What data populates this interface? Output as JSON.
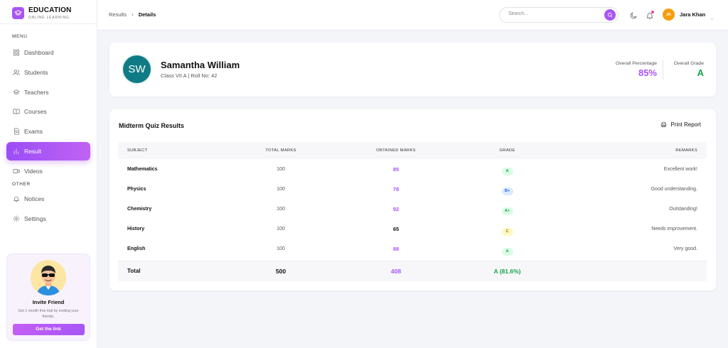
{
  "brand": {
    "title": "EDUCATION",
    "subtitle": "ONLINE LEARNING",
    "icon": "graduation-cap-icon",
    "color": "#a855f7"
  },
  "sidebar": {
    "menu_label": "MENU",
    "items": [
      {
        "label": "Dashboard",
        "icon": "dashboard-icon",
        "active": false
      },
      {
        "label": "Students",
        "icon": "users-icon",
        "active": false
      },
      {
        "label": "Teachers",
        "icon": "graduation-cap-icon",
        "active": false
      },
      {
        "label": "Courses",
        "icon": "book-icon",
        "active": false
      },
      {
        "label": "Exams",
        "icon": "document-icon",
        "active": false
      },
      {
        "label": "Result",
        "icon": "bar-chart-icon",
        "active": true
      },
      {
        "label": "Videos",
        "icon": "video-icon",
        "active": false
      }
    ],
    "other_label": "OTHER",
    "other_items": [
      {
        "label": "Notices",
        "icon": "bell-icon"
      },
      {
        "label": "Settings",
        "icon": "gear-icon"
      }
    ],
    "invite": {
      "title": "Invite Friend",
      "description": "Get 1 month free trial by inviting your friends.",
      "button": "Get the link"
    }
  },
  "header": {
    "breadcrumb": [
      "Results",
      "Details"
    ],
    "search": {
      "placeholder": "Search...",
      "value": ""
    },
    "user": {
      "initials": "JK",
      "name": "Jara Khan",
      "avatar_color": "#f59e0b"
    }
  },
  "student": {
    "initials": "SW",
    "name": "Samantha William",
    "meta": "Class VII A | Roll No: 42",
    "avatar_color": "#0f7b84",
    "overall_percentage_label": "Overall Percentage",
    "overall_percentage": "85%",
    "overall_grade_label": "Overall Grade",
    "overall_grade": "A"
  },
  "results": {
    "title": "Midterm Quiz Results",
    "print_label": "Print Report",
    "columns": [
      "SUBJECT",
      "TOTAL MARKS",
      "OBTAINED MARKS",
      "GRADE",
      "REMARKS"
    ],
    "rows": [
      {
        "subject": "Mathematics",
        "total": "100",
        "obtained": "85",
        "grade": "A",
        "remarks": "Excellent work!",
        "obtained_color": "#a855f7",
        "grade_bg": "#dcfce7",
        "grade_color": "#16a34a"
      },
      {
        "subject": "Physics",
        "total": "100",
        "obtained": "78",
        "grade": "B+",
        "remarks": "Good understanding.",
        "obtained_color": "#a855f7",
        "grade_bg": "#dbeafe",
        "grade_color": "#2563eb"
      },
      {
        "subject": "Chemistry",
        "total": "100",
        "obtained": "92",
        "grade": "A+",
        "remarks": "Outstanding!",
        "obtained_color": "#a855f7",
        "grade_bg": "#dcfce7",
        "grade_color": "#16a34a"
      },
      {
        "subject": "History",
        "total": "100",
        "obtained": "65",
        "grade": "C",
        "remarks": "Needs improvement.",
        "obtained_color": "#111111",
        "grade_bg": "#fef9c3",
        "grade_color": "#a16207"
      },
      {
        "subject": "English",
        "total": "100",
        "obtained": "88",
        "grade": "A",
        "remarks": "Very good.",
        "obtained_color": "#a855f7",
        "grade_bg": "#dcfce7",
        "grade_color": "#16a34a"
      }
    ],
    "total": {
      "label": "Total",
      "total": "500",
      "obtained": "408",
      "grade": "A (81.6%)"
    }
  },
  "colors": {
    "accent": "#a855f7",
    "success": "#16a34a",
    "teal": "#0f7b84"
  }
}
